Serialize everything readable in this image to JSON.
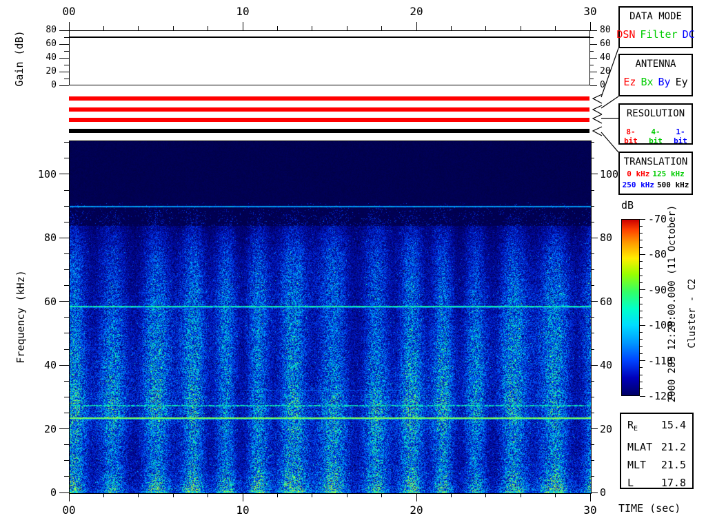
{
  "annotations": {
    "timestamp_rotated": "2000 285 12:28:00.000 (11 October)",
    "spacecraft_rotated": "Cluster - C2",
    "time_axis_label": "TIME (sec)",
    "colorbar_label": "dB"
  },
  "panels": {
    "data_mode": {
      "title": "DATA MODE",
      "items": [
        {
          "label": "DSN",
          "color": "#ff0000"
        },
        {
          "label": "Filter",
          "color": "#00cc00"
        },
        {
          "label": "DC",
          "color": "#0000ff"
        }
      ]
    },
    "antenna": {
      "title": "ANTENNA",
      "items": [
        {
          "label": "Ez",
          "color": "#ff0000"
        },
        {
          "label": "Bx",
          "color": "#00cc00"
        },
        {
          "label": "By",
          "color": "#0000ff"
        },
        {
          "label": "Ey",
          "color": "#000000"
        }
      ]
    },
    "resolution": {
      "title": "RESOLUTION",
      "items": [
        {
          "label": "8-bit",
          "color": "#ff0000"
        },
        {
          "label": "4-bit",
          "color": "#00cc00"
        },
        {
          "label": "1-bit",
          "color": "#0000ff"
        }
      ]
    },
    "translation": {
      "title": "TRANSLATION",
      "row1": [
        {
          "label": "0 kHz",
          "color": "#ff0000"
        },
        {
          "label": "125 kHz",
          "color": "#00cc00"
        }
      ],
      "row2": [
        {
          "label": "250 kHz",
          "color": "#0000ff"
        },
        {
          "label": "500 kHz",
          "color": "#000000"
        }
      ]
    }
  },
  "info_box": {
    "rows": [
      {
        "label": "R",
        "sub": "E",
        "value": "15.4"
      },
      {
        "label": "MLAT",
        "sub": "",
        "value": "21.2"
      },
      {
        "label": "MLT",
        "sub": "",
        "value": "21.5"
      },
      {
        "label": "L",
        "sub": "",
        "value": "17.8"
      }
    ]
  },
  "chart_data": {
    "type": "heatmap",
    "description": "Cluster C2 wideband (WBD) VLF spectrogram: speckled blue/cyan broadband noise with quasi-periodic vertical intensity bands (~2 s period) below ~84 kHz; dark background above ~84 kHz; narrowband interference lines.",
    "x": {
      "label": "TIME (sec)",
      "min": 0,
      "max": 30,
      "major_ticks": [
        0,
        10,
        20,
        30
      ],
      "tick_labels": [
        "00",
        "10",
        "20",
        "30"
      ],
      "minor_step": 2
    },
    "y": {
      "label": "Frequency (kHz)",
      "min": 0,
      "max": 110.6,
      "major_ticks": [
        0,
        20,
        40,
        60,
        80,
        100
      ],
      "tick_labels": [
        "0",
        "20",
        "40",
        "60",
        "80",
        "100"
      ],
      "minor_step": 5
    },
    "z": {
      "label": "dB",
      "min": -120,
      "max": -70,
      "major_ticks": [
        -70,
        -80,
        -90,
        -100,
        -110,
        -120
      ],
      "tick_labels": [
        "-70",
        "-80",
        "-90",
        "-100",
        "-110",
        "-120"
      ],
      "minor_step": 2,
      "colormap": "jet"
    },
    "gain_plot": {
      "ylabel": "Gain (dB)",
      "min": 0,
      "max": 80,
      "major_ticks": [
        0,
        20,
        40,
        60,
        80
      ],
      "tick_labels": [
        "0",
        "20",
        "40",
        "60",
        "80"
      ],
      "minor_step": 10,
      "gain_value_db": 71
    },
    "status_bars": [
      {
        "group": "data-mode",
        "color": "#ff0000"
      },
      {
        "group": "antenna",
        "color": "#ff0000"
      },
      {
        "group": "resolution",
        "color": "#ff0000"
      },
      {
        "group": "translation",
        "color": "#000000"
      }
    ],
    "spectral_lines_khz": [
      {
        "freq": 90.2,
        "appearance": "light-blue",
        "extent_sec": [
          0,
          30
        ]
      },
      {
        "freq": 58.8,
        "appearance": "green",
        "extent_sec": [
          0,
          30
        ]
      },
      {
        "freq": 32.4,
        "appearance": "faint-cyan",
        "extent_sec": [
          10,
          19
        ]
      },
      {
        "freq": 27.6,
        "appearance": "green-broken",
        "extent_sec": [
          0,
          30
        ]
      },
      {
        "freq": 23.9,
        "appearance": "yellow-green",
        "extent_sec": [
          0,
          30
        ]
      }
    ],
    "noise_texture": {
      "band_period_sec": 2.1,
      "upper_cutoff_khz": 84,
      "fade_top_khz": 91.5
    }
  }
}
